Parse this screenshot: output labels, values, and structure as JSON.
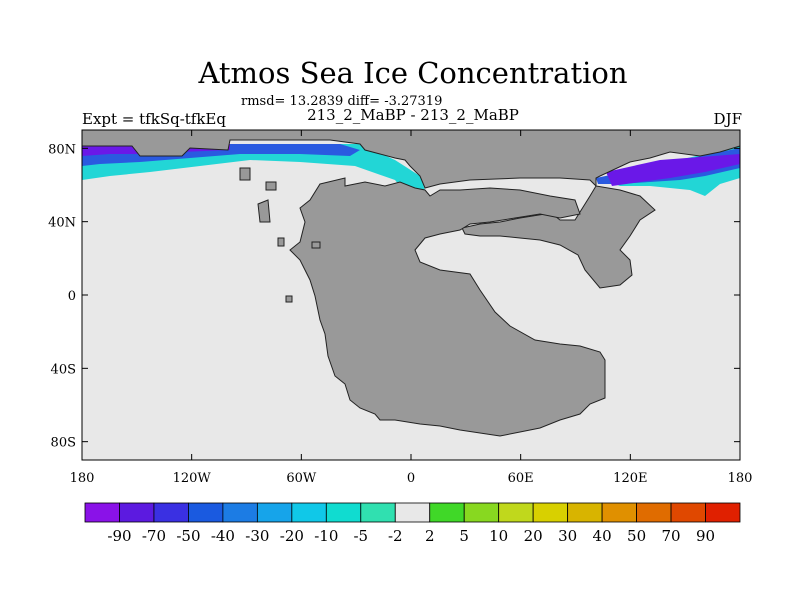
{
  "header": {
    "title": "Atmos Sea Ice Concentration",
    "stats": "rmsd= 13.2839 diff= -3.27319",
    "left_label": "Expt = tfkSq-tfkEq",
    "center_label": "213_2_MaBP - 213_2_MaBP",
    "right_label": "DJF"
  },
  "map": {
    "projection": "cylindrical equidistant",
    "lon_range": [
      -180,
      180
    ],
    "lat_range": [
      -90,
      90
    ],
    "x_ticks": [
      {
        "lon": -180,
        "label": "180"
      },
      {
        "lon": -120,
        "label": "120W"
      },
      {
        "lon": -60,
        "label": "60W"
      },
      {
        "lon": 0,
        "label": "0"
      },
      {
        "lon": 60,
        "label": "60E"
      },
      {
        "lon": 120,
        "label": "120E"
      },
      {
        "lon": 180,
        "label": "180"
      }
    ],
    "y_ticks": [
      {
        "lat": 80,
        "label": "80N"
      },
      {
        "lat": 40,
        "label": "40N"
      },
      {
        "lat": 0,
        "label": "0"
      },
      {
        "lat": -40,
        "label": "40S"
      },
      {
        "lat": -80,
        "label": "80S"
      }
    ],
    "colors": {
      "ocean": "#e8e8e8",
      "land": "#999999",
      "coast": "#222222",
      "ice_strong": "#6a18e8",
      "ice_mid": "#2a5ae0",
      "ice_light": "#22d6d6"
    }
  },
  "colorbar": {
    "labels": [
      "-90",
      "-70",
      "-50",
      "-40",
      "-30",
      "-20",
      "-10",
      "-5",
      "-2",
      "2",
      "5",
      "10",
      "20",
      "30",
      "40",
      "50",
      "70",
      "90"
    ],
    "colors": [
      "#8a12e8",
      "#5c1ae0",
      "#3a30e2",
      "#1a5ae0",
      "#1c7ce4",
      "#16a4ea",
      "#10c8e8",
      "#10dcd0",
      "#30e0b0",
      "#e8e8e8",
      "#40d828",
      "#88d820",
      "#c0d81c",
      "#d8d000",
      "#d8b400",
      "#e09000",
      "#e06c00",
      "#e04800",
      "#e02000"
    ]
  }
}
